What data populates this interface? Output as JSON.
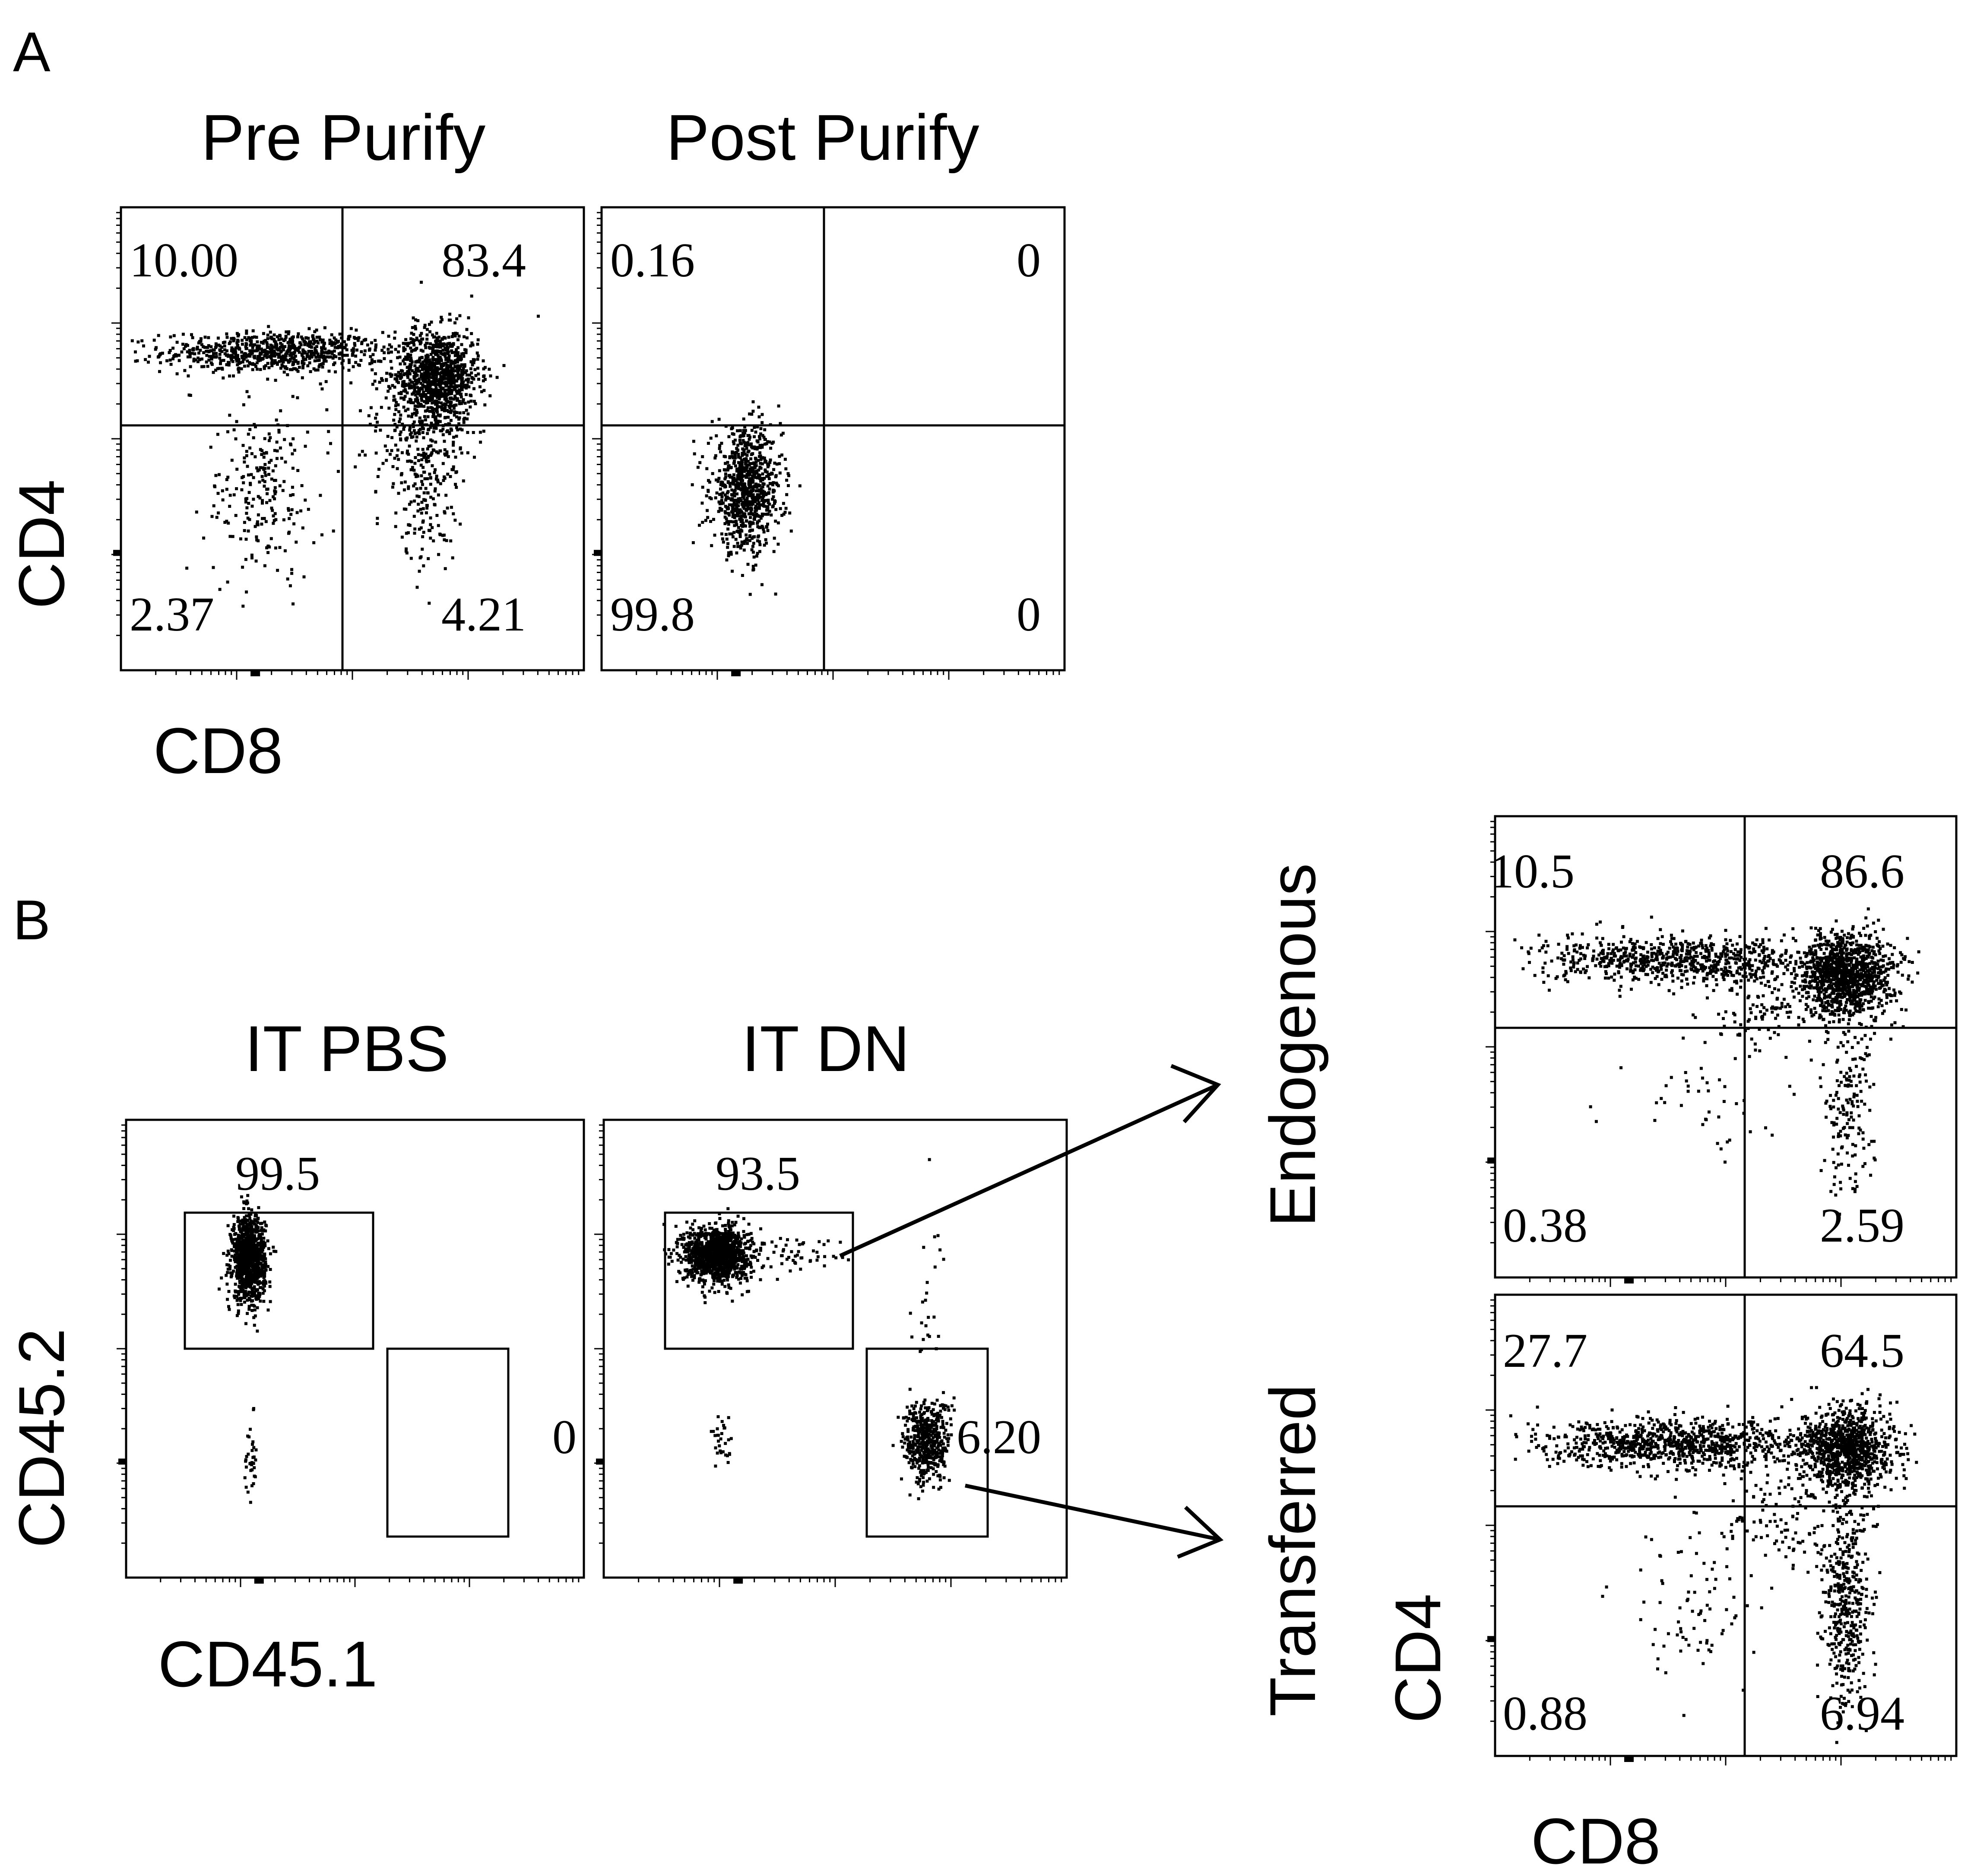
{
  "panel_labels": {
    "A": "A",
    "B": "B"
  },
  "panel_a": {
    "x_axis_label": "CD8",
    "y_axis_label": "CD4"
  },
  "panel_b": {
    "x_axis_label": "CD45.1",
    "y_axis_label": "CD45.2",
    "right_x_axis_label": "CD8",
    "right_y_axis_label": "CD4"
  },
  "chart_data": [
    {
      "type": "scatter",
      "id": "pre_purify",
      "title": "Pre Purify",
      "xlabel": "CD8",
      "ylabel": "CD4",
      "quadrants": {
        "upper_left": "10.00",
        "upper_right": "83.4",
        "lower_left": "2.37",
        "lower_right": "4.21"
      },
      "clusters": [
        {
          "cx": 0.33,
          "cy": 0.69,
          "sx": 0.12,
          "sy": 0.022,
          "n": 750
        },
        {
          "cx": 0.68,
          "cy": 0.64,
          "sx": 0.045,
          "sy": 0.05,
          "n": 1000
        },
        {
          "cx": 0.65,
          "cy": 0.5,
          "sx": 0.05,
          "sy": 0.06,
          "n": 170
        },
        {
          "cx": 0.66,
          "cy": 0.38,
          "sx": 0.03,
          "sy": 0.08,
          "n": 140
        },
        {
          "cx": 0.3,
          "cy": 0.38,
          "sx": 0.06,
          "sy": 0.09,
          "n": 210
        },
        {
          "cx": 0.5,
          "cy": 0.55,
          "sx": 0.11,
          "sy": 0.1,
          "n": 60
        }
      ]
    },
    {
      "type": "scatter",
      "id": "post_purify",
      "title": "Post Purify",
      "xlabel": "",
      "ylabel": "",
      "quadrants": {
        "upper_left": "0.16",
        "upper_right": "0",
        "lower_left": "99.8",
        "lower_right": "0"
      },
      "clusters": [
        {
          "cx": 0.31,
          "cy": 0.39,
          "sx": 0.038,
          "sy": 0.065,
          "n": 850
        }
      ]
    },
    {
      "type": "scatter",
      "id": "it_pbs",
      "title": "IT PBS",
      "xlabel": "CD45.1",
      "ylabel": "CD45.2",
      "gates": {
        "upper": "99.5",
        "lower": "0"
      },
      "clusters": [
        {
          "cx": 0.265,
          "cy": 0.7,
          "sx": 0.018,
          "sy": 0.045,
          "n": 1100
        },
        {
          "cx": 0.27,
          "cy": 0.27,
          "sx": 0.007,
          "sy": 0.04,
          "n": 35
        }
      ]
    },
    {
      "type": "scatter",
      "id": "it_dn",
      "title": "IT DN",
      "xlabel": "",
      "ylabel": "",
      "gates": {
        "upper": "93.5",
        "lower": "6.20"
      },
      "clusters": [
        {
          "cx": 0.24,
          "cy": 0.71,
          "sx": 0.035,
          "sy": 0.03,
          "n": 1200
        },
        {
          "cx": 0.4,
          "cy": 0.71,
          "sx": 0.06,
          "sy": 0.02,
          "n": 60
        },
        {
          "cx": 0.695,
          "cy": 0.3,
          "sx": 0.025,
          "sy": 0.045,
          "n": 480
        },
        {
          "cx": 0.7,
          "cy": 0.58,
          "sx": 0.02,
          "sy": 0.12,
          "n": 25
        },
        {
          "cx": 0.25,
          "cy": 0.3,
          "sx": 0.012,
          "sy": 0.03,
          "n": 30
        }
      ]
    },
    {
      "type": "scatter",
      "id": "endogenous",
      "title": "Endogenous",
      "xlabel": "",
      "ylabel": "",
      "quadrants": {
        "upper_left": "10.5",
        "upper_right": "86.6",
        "lower_left": "0.38",
        "lower_right": "2.59"
      },
      "clusters": [
        {
          "cx": 0.4,
          "cy": 0.69,
          "sx": 0.15,
          "sy": 0.025,
          "n": 750
        },
        {
          "cx": 0.76,
          "cy": 0.66,
          "sx": 0.05,
          "sy": 0.045,
          "n": 1100
        },
        {
          "cx": 0.76,
          "cy": 0.38,
          "sx": 0.03,
          "sy": 0.1,
          "n": 170
        },
        {
          "cx": 0.6,
          "cy": 0.58,
          "sx": 0.08,
          "sy": 0.04,
          "n": 120
        },
        {
          "cx": 0.45,
          "cy": 0.36,
          "sx": 0.09,
          "sy": 0.08,
          "n": 45
        }
      ]
    },
    {
      "type": "scatter",
      "id": "transferred",
      "title": "Transferred",
      "xlabel": "CD8",
      "ylabel": "CD4",
      "quadrants": {
        "upper_left": "27.7",
        "upper_right": "64.5",
        "lower_left": "0.88",
        "lower_right": "6.94"
      },
      "clusters": [
        {
          "cx": 0.39,
          "cy": 0.68,
          "sx": 0.14,
          "sy": 0.025,
          "n": 900
        },
        {
          "cx": 0.76,
          "cy": 0.67,
          "sx": 0.05,
          "sy": 0.045,
          "n": 1000
        },
        {
          "cx": 0.76,
          "cy": 0.33,
          "sx": 0.025,
          "sy": 0.11,
          "n": 420
        },
        {
          "cx": 0.62,
          "cy": 0.52,
          "sx": 0.08,
          "sy": 0.06,
          "n": 130
        },
        {
          "cx": 0.45,
          "cy": 0.33,
          "sx": 0.09,
          "sy": 0.09,
          "n": 80
        }
      ]
    }
  ]
}
